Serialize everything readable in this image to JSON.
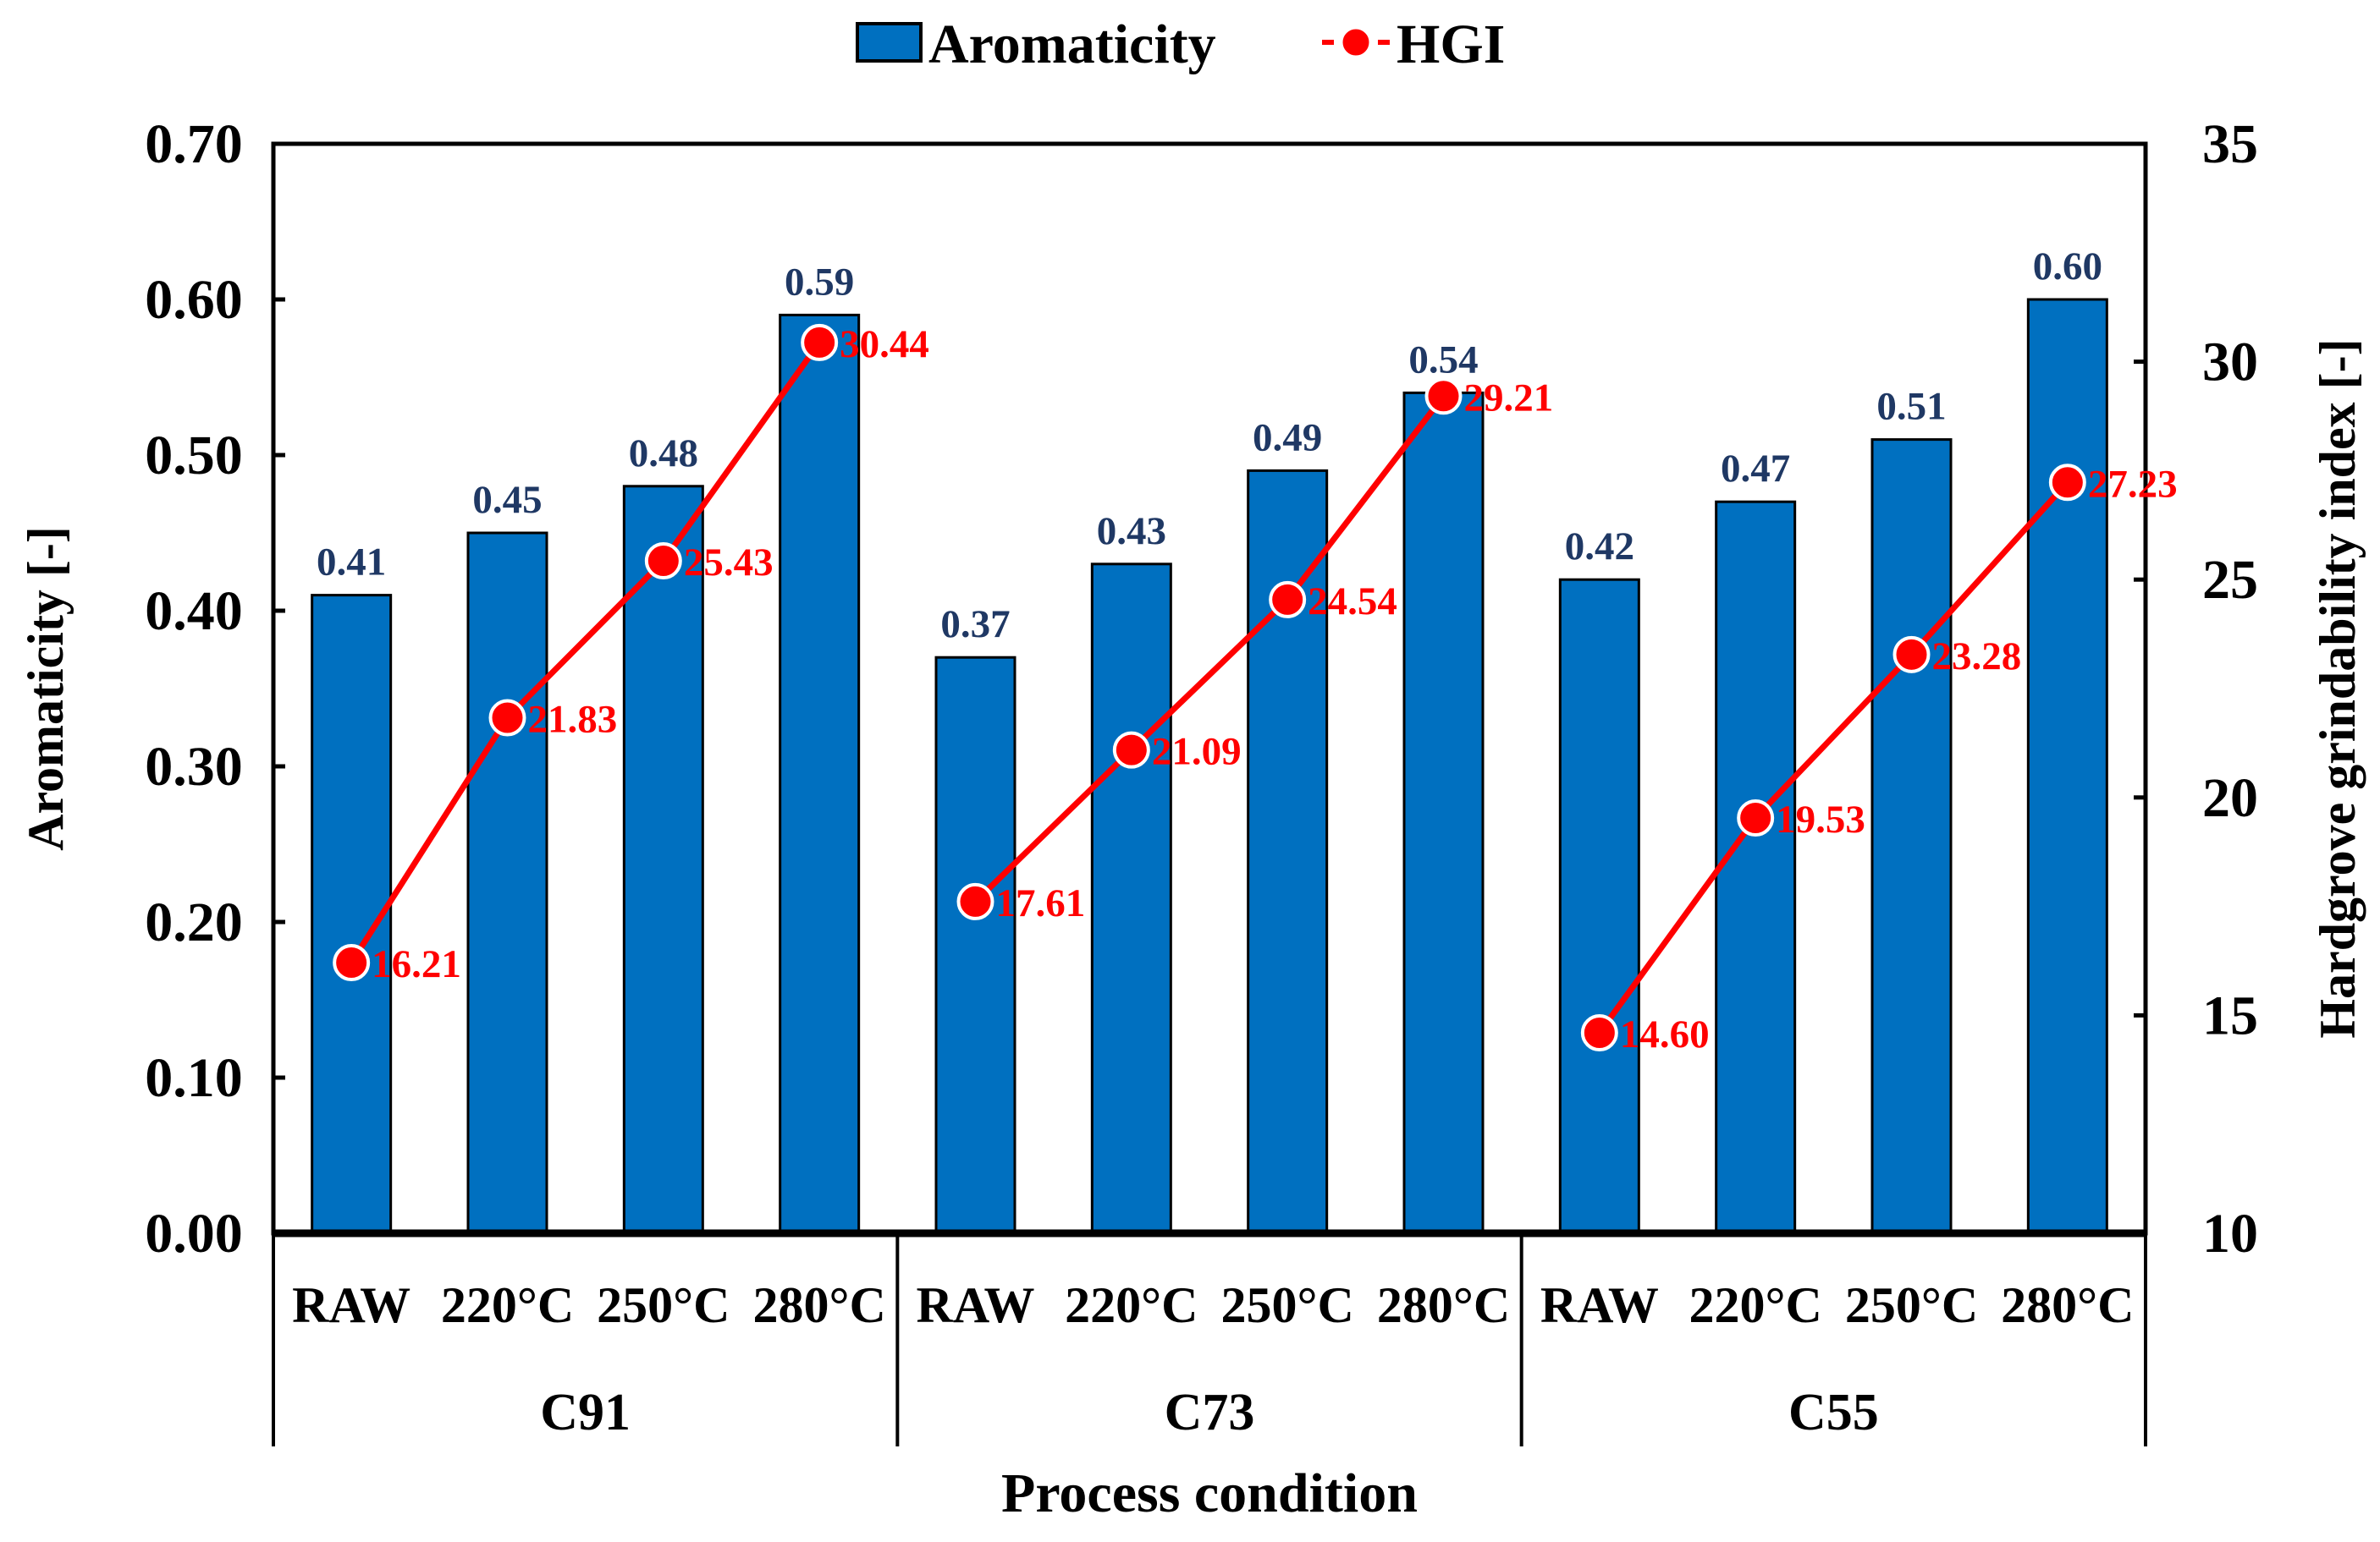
{
  "chart_data": {
    "type": "bar+line",
    "xlabel": "Process condition",
    "ylabel_left": "Aromaticity [-]",
    "ylabel_right": "Hardgrove grindability index [-]",
    "ylim_left": [
      0,
      0.7
    ],
    "ylim_right": [
      10,
      35
    ],
    "yticks_left": [
      "0.00",
      "0.10",
      "0.20",
      "0.30",
      "0.40",
      "0.50",
      "0.60",
      "0.70"
    ],
    "yticks_right": [
      "10",
      "15",
      "20",
      "25",
      "30",
      "35"
    ],
    "groups": [
      "C91",
      "C73",
      "C55"
    ],
    "categories": [
      "RAW",
      "220°C",
      "250°C",
      "280°C",
      "RAW",
      "220°C",
      "250°C",
      "280°C",
      "RAW",
      "220°C",
      "250°C",
      "280°C"
    ],
    "legend": {
      "placement": "top-center",
      "entries": [
        "Aromaticity",
        "HGI"
      ]
    },
    "series": [
      {
        "name": "Aromaticity",
        "type": "bar",
        "axis": "left",
        "color": "#0070c0",
        "values": [
          0.41,
          0.45,
          0.48,
          0.59,
          0.37,
          0.43,
          0.49,
          0.54,
          0.42,
          0.47,
          0.51,
          0.6
        ],
        "labels": [
          "0.41",
          "0.45",
          "0.48",
          "0.59",
          "0.37",
          "0.43",
          "0.49",
          "0.54",
          "0.42",
          "0.47",
          "0.51",
          "0.60"
        ]
      },
      {
        "name": "HGI",
        "type": "line",
        "axis": "right",
        "color": "#ff0000",
        "values": [
          16.21,
          21.83,
          25.43,
          30.44,
          17.61,
          21.09,
          24.54,
          29.21,
          14.6,
          19.53,
          23.28,
          27.23
        ],
        "labels": [
          "16.21",
          "21.83",
          "25.43",
          "30.44",
          "17.61",
          "21.09",
          "24.54",
          "29.21",
          "14.60",
          "19.53",
          "23.28",
          "27.23"
        ]
      }
    ],
    "grid": false
  }
}
